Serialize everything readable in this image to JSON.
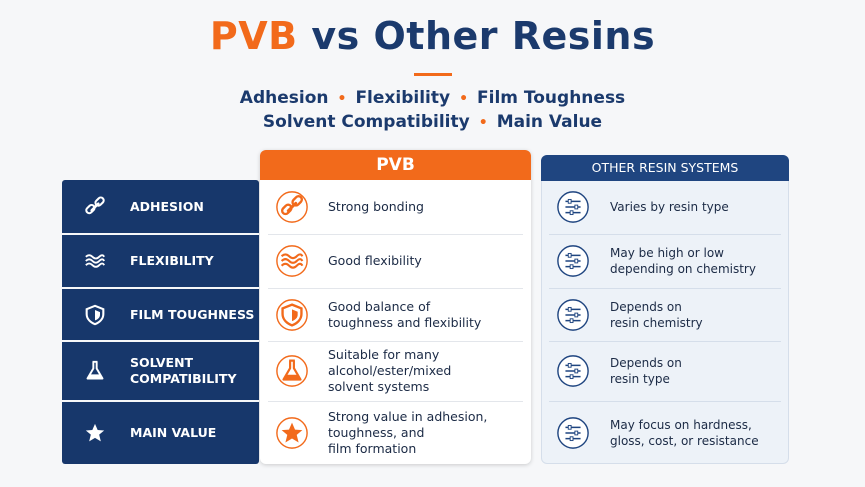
{
  "header": {
    "title_highlight": "PVB",
    "title_rest": "vs Other Resins",
    "subtitle_lines": [
      [
        "Adhesion",
        "Flexibility",
        "Film Toughness"
      ],
      [
        "Solvent Compatibility",
        "Main Value"
      ]
    ]
  },
  "table": {
    "columns": [
      "PVB",
      "OTHER RESIN SYSTEMS"
    ],
    "rows": [
      {
        "label": [
          "ADHESION"
        ],
        "pvb": [
          "Strong bonding"
        ],
        "other": [
          "Varies by resin type"
        ]
      },
      {
        "label": [
          "FLEXIBILITY"
        ],
        "pvb": [
          "Good flexibility"
        ],
        "other": [
          "May be high or low",
          "depending on chemistry"
        ]
      },
      {
        "label": [
          "FILM TOUGHNESS"
        ],
        "pvb": [
          "Good balance of",
          "toughness and flexibility"
        ],
        "other": [
          "Depends on",
          "resin chemistry"
        ]
      },
      {
        "label": [
          "SOLVENT",
          "COMPATIBILITY"
        ],
        "pvb": [
          "Suitable for many",
          "alcohol/ester/mixed",
          "solvent systems"
        ],
        "other": [
          "Depends on",
          "resin type"
        ]
      },
      {
        "label": [
          "MAIN VALUE"
        ],
        "pvb": [
          "Strong value in adhesion,",
          "toughness, and",
          "film formation"
        ],
        "other": [
          "May focus on hardness,",
          "gloss, cost, or resistance"
        ]
      }
    ]
  }
}
